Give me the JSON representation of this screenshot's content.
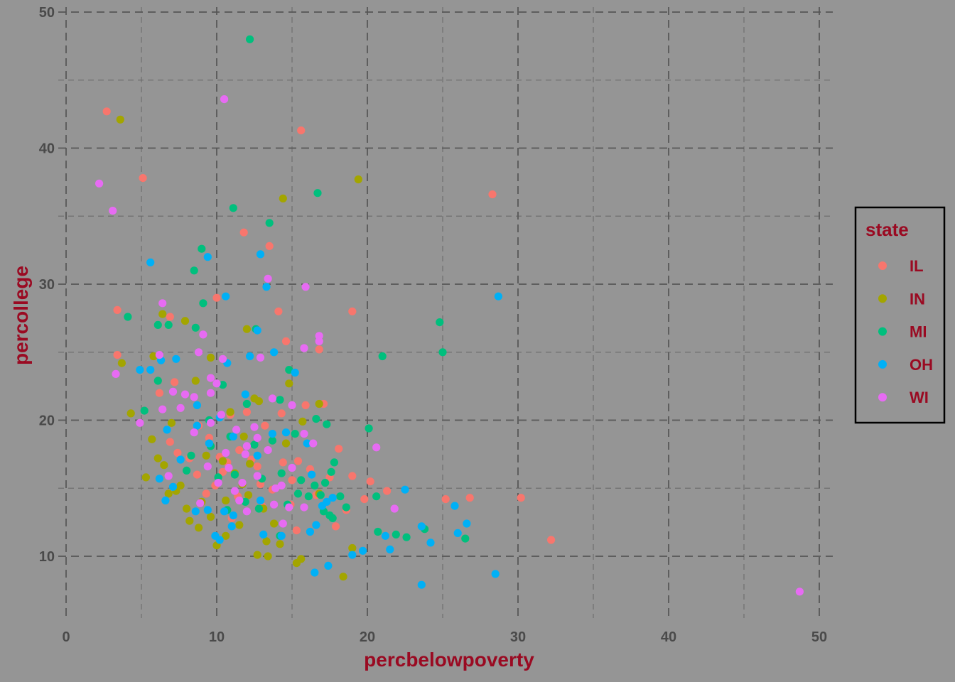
{
  "chart_data": {
    "type": "scatter",
    "title": "",
    "xlabel": "percbelowpoverty",
    "ylabel": "percollege",
    "xlim": [
      0,
      50
    ],
    "ylim": [
      5.3,
      50
    ],
    "xticks": [
      0,
      10,
      20,
      30,
      40,
      50
    ],
    "yticks": [
      10,
      20,
      30,
      40,
      50
    ],
    "grid": true,
    "legend": {
      "title": "state",
      "placement": "right"
    },
    "series": [
      {
        "name": "IL",
        "color": "#F8766D",
        "points": [
          [
            2.7,
            42.7
          ],
          [
            5.1,
            37.8
          ],
          [
            15.6,
            41.3
          ],
          [
            28.3,
            36.6
          ],
          [
            11.8,
            33.8
          ],
          [
            13.5,
            32.8
          ],
          [
            3.4,
            28.1
          ],
          [
            10.0,
            29.0
          ],
          [
            14.1,
            28.0
          ],
          [
            19.0,
            28.0
          ],
          [
            3.4,
            24.8
          ],
          [
            6.9,
            27.6
          ],
          [
            14.6,
            25.8
          ],
          [
            16.8,
            25.2
          ],
          [
            7.2,
            22.8
          ],
          [
            6.2,
            22.0
          ],
          [
            17.1,
            21.2
          ],
          [
            15.9,
            21.1
          ],
          [
            12.0,
            20.6
          ],
          [
            10.9,
            20.4
          ],
          [
            13.2,
            19.6
          ],
          [
            14.3,
            20.5
          ],
          [
            9.5,
            18.7
          ],
          [
            8.8,
            19.6
          ],
          [
            10.2,
            17.3
          ],
          [
            11.5,
            17.8
          ],
          [
            12.7,
            16.6
          ],
          [
            14.4,
            16.9
          ],
          [
            15.4,
            17.0
          ],
          [
            16.2,
            16.4
          ],
          [
            17.5,
            15.8
          ],
          [
            18.1,
            17.9
          ],
          [
            19.0,
            15.9
          ],
          [
            20.2,
            15.5
          ],
          [
            21.3,
            14.8
          ],
          [
            19.8,
            14.2
          ],
          [
            17.9,
            12.2
          ],
          [
            15.3,
            11.9
          ],
          [
            13.0,
            13.7
          ],
          [
            11.4,
            14.4
          ],
          [
            9.9,
            15.2
          ],
          [
            8.7,
            16.0
          ],
          [
            7.4,
            17.6
          ],
          [
            6.9,
            18.4
          ],
          [
            10.7,
            16.9
          ],
          [
            12.9,
            15.3
          ],
          [
            14.9,
            13.8
          ],
          [
            16.6,
            14.5
          ],
          [
            25.2,
            14.2
          ],
          [
            26.8,
            14.3
          ],
          [
            30.2,
            14.3
          ],
          [
            32.2,
            11.2
          ],
          [
            9.3,
            14.6
          ],
          [
            11.0,
            12.8
          ],
          [
            13.7,
            14.9
          ],
          [
            15.0,
            15.6
          ],
          [
            18.6,
            13.4
          ],
          [
            10.4,
            16.2
          ],
          [
            12.3,
            17.1
          ],
          [
            8.2,
            17.2
          ]
        ]
      },
      {
        "name": "IN",
        "color": "#A3A500",
        "points": [
          [
            3.6,
            42.1
          ],
          [
            19.4,
            37.7
          ],
          [
            14.4,
            36.3
          ],
          [
            3.7,
            24.2
          ],
          [
            4.3,
            20.5
          ],
          [
            5.8,
            24.7
          ],
          [
            6.4,
            27.8
          ],
          [
            7.9,
            27.3
          ],
          [
            8.6,
            22.9
          ],
          [
            9.6,
            24.6
          ],
          [
            12.0,
            26.7
          ],
          [
            12.5,
            21.6
          ],
          [
            14.8,
            22.7
          ],
          [
            16.8,
            21.2
          ],
          [
            5.3,
            15.8
          ],
          [
            6.1,
            17.2
          ],
          [
            6.8,
            14.6
          ],
          [
            7.6,
            15.2
          ],
          [
            8.2,
            12.6
          ],
          [
            8.8,
            12.1
          ],
          [
            9.6,
            12.9
          ],
          [
            10.0,
            10.8
          ],
          [
            10.6,
            11.5
          ],
          [
            11.5,
            12.3
          ],
          [
            12.7,
            10.1
          ],
          [
            13.4,
            10.0
          ],
          [
            14.2,
            10.9
          ],
          [
            15.3,
            9.5
          ],
          [
            15.6,
            9.8
          ],
          [
            18.4,
            8.5
          ],
          [
            19.0,
            10.6
          ],
          [
            5.7,
            18.6
          ],
          [
            7.0,
            19.8
          ],
          [
            9.3,
            17.4
          ],
          [
            10.4,
            17.0
          ],
          [
            11.2,
            16.1
          ],
          [
            12.1,
            14.5
          ],
          [
            13.1,
            13.5
          ],
          [
            13.8,
            12.4
          ],
          [
            10.9,
            20.6
          ],
          [
            12.8,
            21.4
          ],
          [
            15.7,
            19.9
          ],
          [
            16.8,
            14.6
          ],
          [
            11.7,
            15.3
          ],
          [
            9.0,
            14.0
          ],
          [
            8.0,
            13.5
          ],
          [
            6.5,
            16.7
          ],
          [
            7.3,
            14.8
          ],
          [
            13.9,
            15.0
          ],
          [
            12.2,
            16.8
          ],
          [
            10.6,
            14.1
          ],
          [
            11.8,
            18.8
          ],
          [
            14.6,
            18.3
          ],
          [
            13.3,
            11.1
          ]
        ]
      },
      {
        "name": "MI",
        "color": "#00BF7D",
        "points": [
          [
            12.2,
            48.0
          ],
          [
            11.1,
            35.6
          ],
          [
            13.5,
            34.5
          ],
          [
            16.7,
            36.7
          ],
          [
            9.0,
            32.6
          ],
          [
            8.5,
            31.0
          ],
          [
            9.1,
            28.6
          ],
          [
            4.1,
            27.6
          ],
          [
            6.1,
            27.0
          ],
          [
            6.8,
            27.0
          ],
          [
            8.6,
            26.8
          ],
          [
            12.6,
            26.7
          ],
          [
            24.8,
            27.2
          ],
          [
            25.0,
            25.0
          ],
          [
            21.0,
            24.7
          ],
          [
            14.8,
            23.7
          ],
          [
            10.4,
            22.6
          ],
          [
            6.1,
            22.9
          ],
          [
            5.2,
            20.7
          ],
          [
            9.5,
            20.0
          ],
          [
            12.0,
            21.2
          ],
          [
            14.2,
            21.5
          ],
          [
            16.6,
            20.1
          ],
          [
            17.3,
            19.7
          ],
          [
            20.1,
            19.4
          ],
          [
            15.2,
            19.0
          ],
          [
            13.7,
            18.5
          ],
          [
            12.5,
            18.2
          ],
          [
            10.9,
            18.8
          ],
          [
            9.6,
            18.1
          ],
          [
            8.3,
            17.4
          ],
          [
            8.0,
            16.3
          ],
          [
            10.1,
            15.8
          ],
          [
            11.2,
            16.0
          ],
          [
            13.0,
            15.7
          ],
          [
            14.3,
            16.1
          ],
          [
            15.6,
            15.6
          ],
          [
            16.5,
            15.2
          ],
          [
            17.2,
            15.4
          ],
          [
            17.8,
            16.9
          ],
          [
            17.6,
            16.2
          ],
          [
            18.2,
            14.4
          ],
          [
            18.6,
            13.6
          ],
          [
            17.5,
            13.0
          ],
          [
            17.1,
            13.3
          ],
          [
            15.4,
            14.6
          ],
          [
            14.7,
            13.8
          ],
          [
            20.6,
            14.4
          ],
          [
            20.7,
            11.8
          ],
          [
            21.9,
            11.6
          ],
          [
            22.6,
            11.4
          ],
          [
            23.8,
            12.0
          ],
          [
            26.5,
            11.3
          ],
          [
            12.8,
            13.5
          ],
          [
            11.9,
            14.0
          ],
          [
            10.7,
            13.4
          ],
          [
            14.2,
            11.5
          ],
          [
            16.1,
            14.4
          ],
          [
            17.7,
            12.8
          ],
          [
            16.9,
            14.5
          ]
        ]
      },
      {
        "name": "OH",
        "color": "#00B0F6",
        "points": [
          [
            28.7,
            29.1
          ],
          [
            5.6,
            31.6
          ],
          [
            9.4,
            32.0
          ],
          [
            12.9,
            32.2
          ],
          [
            10.6,
            29.1
          ],
          [
            13.3,
            29.8
          ],
          [
            12.7,
            26.6
          ],
          [
            13.8,
            25.0
          ],
          [
            12.2,
            24.7
          ],
          [
            10.7,
            24.2
          ],
          [
            15.2,
            23.5
          ],
          [
            7.3,
            24.5
          ],
          [
            6.3,
            24.4
          ],
          [
            5.6,
            23.7
          ],
          [
            4.9,
            23.7
          ],
          [
            8.7,
            21.1
          ],
          [
            11.9,
            21.9
          ],
          [
            13.7,
            19.0
          ],
          [
            14.6,
            19.1
          ],
          [
            16.0,
            18.3
          ],
          [
            9.5,
            18.3
          ],
          [
            8.7,
            19.6
          ],
          [
            6.7,
            19.3
          ],
          [
            10.2,
            20.2
          ],
          [
            11.1,
            18.8
          ],
          [
            12.7,
            17.4
          ],
          [
            7.6,
            17.1
          ],
          [
            6.2,
            15.7
          ],
          [
            7.1,
            15.1
          ],
          [
            6.6,
            14.1
          ],
          [
            8.6,
            13.3
          ],
          [
            9.4,
            13.4
          ],
          [
            10.5,
            13.3
          ],
          [
            11.1,
            13.0
          ],
          [
            12.9,
            14.1
          ],
          [
            13.1,
            11.6
          ],
          [
            11.0,
            12.2
          ],
          [
            9.9,
            11.5
          ],
          [
            10.2,
            11.2
          ],
          [
            16.3,
            16.0
          ],
          [
            16.6,
            12.3
          ],
          [
            16.2,
            11.8
          ],
          [
            17.0,
            13.7
          ],
          [
            17.3,
            14.0
          ],
          [
            17.7,
            14.3
          ],
          [
            16.5,
            8.8
          ],
          [
            17.4,
            9.3
          ],
          [
            19.0,
            10.1
          ],
          [
            19.7,
            10.4
          ],
          [
            21.5,
            10.5
          ],
          [
            21.2,
            11.5
          ],
          [
            22.5,
            14.9
          ],
          [
            23.6,
            12.2
          ],
          [
            24.2,
            11.0
          ],
          [
            25.8,
            13.7
          ],
          [
            26.0,
            11.7
          ],
          [
            26.6,
            12.4
          ],
          [
            28.5,
            8.7
          ],
          [
            23.6,
            7.9
          ],
          [
            14.3,
            11.5
          ]
        ]
      },
      {
        "name": "WI",
        "color": "#E76BF3",
        "points": [
          [
            2.2,
            37.4
          ],
          [
            3.1,
            35.4
          ],
          [
            10.5,
            43.6
          ],
          [
            6.4,
            28.6
          ],
          [
            13.4,
            30.4
          ],
          [
            15.9,
            29.8
          ],
          [
            9.1,
            26.3
          ],
          [
            16.8,
            26.2
          ],
          [
            16.8,
            25.8
          ],
          [
            15.8,
            25.3
          ],
          [
            6.2,
            24.8
          ],
          [
            8.8,
            25.0
          ],
          [
            10.4,
            24.5
          ],
          [
            12.9,
            24.6
          ],
          [
            3.3,
            23.4
          ],
          [
            9.6,
            23.1
          ],
          [
            10.0,
            22.7
          ],
          [
            9.6,
            22.0
          ],
          [
            7.1,
            22.1
          ],
          [
            7.9,
            21.9
          ],
          [
            8.5,
            21.7
          ],
          [
            6.4,
            20.8
          ],
          [
            7.6,
            20.9
          ],
          [
            4.9,
            19.8
          ],
          [
            9.6,
            19.8
          ],
          [
            10.3,
            20.4
          ],
          [
            11.3,
            19.3
          ],
          [
            12.5,
            19.5
          ],
          [
            12.7,
            18.7
          ],
          [
            12.0,
            18.1
          ],
          [
            13.7,
            21.6
          ],
          [
            15.0,
            21.1
          ],
          [
            15.8,
            19.0
          ],
          [
            16.4,
            18.3
          ],
          [
            20.6,
            18.0
          ],
          [
            8.5,
            19.1
          ],
          [
            10.6,
            17.6
          ],
          [
            11.9,
            17.5
          ],
          [
            13.4,
            17.8
          ],
          [
            11.7,
            15.4
          ],
          [
            12.7,
            15.9
          ],
          [
            13.9,
            15.0
          ],
          [
            15.0,
            16.5
          ],
          [
            14.3,
            15.2
          ],
          [
            11.5,
            14.1
          ],
          [
            12.0,
            13.3
          ],
          [
            13.8,
            13.8
          ],
          [
            14.4,
            12.4
          ],
          [
            14.8,
            13.6
          ],
          [
            15.8,
            13.6
          ],
          [
            21.8,
            13.5
          ],
          [
            48.7,
            7.4
          ],
          [
            8.9,
            13.9
          ],
          [
            10.1,
            15.4
          ],
          [
            11.2,
            14.8
          ],
          [
            9.4,
            16.6
          ],
          [
            6.8,
            15.9
          ],
          [
            10.8,
            16.5
          ]
        ]
      }
    ]
  }
}
